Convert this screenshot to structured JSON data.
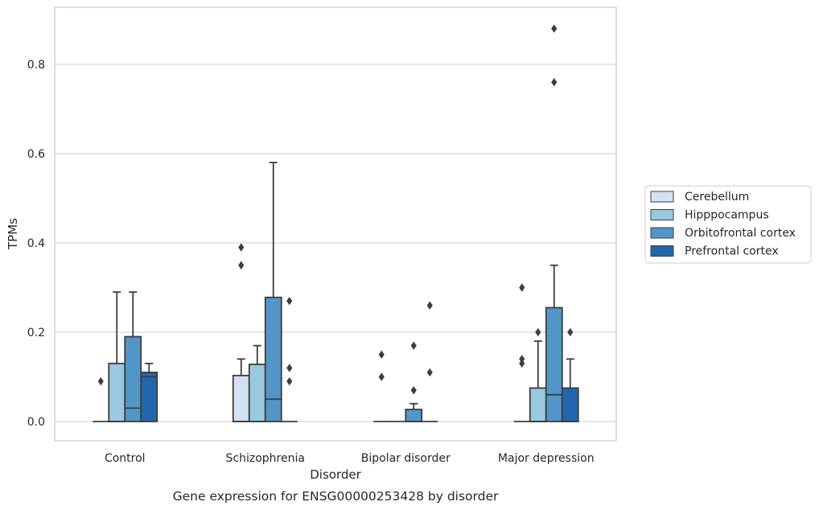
{
  "chart_data": {
    "type": "box",
    "xlabel": "Disorder",
    "ylabel": "TPMs",
    "caption": "Gene expression for ENSG00000253428 by disorder",
    "ylim": [
      -0.042,
      0.93
    ],
    "yticks": [
      "0.0",
      "0.2",
      "0.4",
      "0.6",
      "0.8"
    ],
    "ytick_values": [
      0.0,
      0.2,
      0.4,
      0.6,
      0.8
    ],
    "grid": "horizontal",
    "legend_position": "right",
    "categories": [
      "Control",
      "Schizophrenia",
      "Bipolar disorder",
      "Major depression"
    ],
    "series": [
      {
        "name": "Cerebellum",
        "color": "#d1e2f2",
        "boxes": [
          {
            "q1": 0.0,
            "median": 0.0,
            "q3": 0.0,
            "whislo": 0.0,
            "whishi": 0.0,
            "fliers": [
              0.09
            ]
          },
          {
            "q1": 0.0,
            "median": 0.0,
            "q3": 0.103,
            "whislo": 0.0,
            "whishi": 0.14,
            "fliers": [
              0.35,
              0.39
            ]
          },
          {
            "q1": 0.0,
            "median": 0.0,
            "q3": 0.0,
            "whislo": 0.0,
            "whishi": 0.0,
            "fliers": [
              0.1,
              0.15
            ]
          },
          {
            "q1": 0.0,
            "median": 0.0,
            "q3": 0.0,
            "whislo": 0.0,
            "whishi": 0.0,
            "fliers": [
              0.13,
              0.14,
              0.3
            ]
          }
        ]
      },
      {
        "name": "Hipppocampus",
        "color": "#9ac8e0",
        "boxes": [
          {
            "q1": 0.0,
            "median": 0.0,
            "q3": 0.13,
            "whislo": 0.0,
            "whishi": 0.29,
            "fliers": []
          },
          {
            "q1": 0.0,
            "median": 0.0,
            "q3": 0.128,
            "whislo": 0.0,
            "whishi": 0.17,
            "fliers": []
          },
          {
            "q1": 0.0,
            "median": 0.0,
            "q3": 0.0,
            "whislo": 0.0,
            "whishi": 0.0,
            "fliers": []
          },
          {
            "q1": 0.0,
            "median": 0.0,
            "q3": 0.075,
            "whislo": 0.0,
            "whishi": 0.18,
            "fliers": [
              0.2
            ]
          }
        ]
      },
      {
        "name": "Orbitofrontal cortex",
        "color": "#5296c8",
        "boxes": [
          {
            "q1": 0.0,
            "median": 0.03,
            "q3": 0.19,
            "whislo": 0.0,
            "whishi": 0.29,
            "fliers": []
          },
          {
            "q1": 0.0,
            "median": 0.05,
            "q3": 0.278,
            "whislo": 0.0,
            "whishi": 0.58,
            "fliers": []
          },
          {
            "q1": 0.0,
            "median": 0.0,
            "q3": 0.027,
            "whislo": 0.0,
            "whishi": 0.04,
            "fliers": [
              0.07,
              0.17
            ]
          },
          {
            "q1": 0.0,
            "median": 0.06,
            "q3": 0.255,
            "whislo": 0.0,
            "whishi": 0.35,
            "fliers": [
              0.76,
              0.88
            ]
          }
        ]
      },
      {
        "name": "Prefrontal cortex",
        "color": "#2266ac",
        "boxes": [
          {
            "q1": 0.0,
            "median": 0.1,
            "q3": 0.11,
            "whislo": 0.0,
            "whishi": 0.13,
            "fliers": []
          },
          {
            "q1": 0.0,
            "median": 0.0,
            "q3": 0.0,
            "whislo": 0.0,
            "whishi": 0.0,
            "fliers": [
              0.09,
              0.12,
              0.27
            ]
          },
          {
            "q1": 0.0,
            "median": 0.0,
            "q3": 0.0,
            "whislo": 0.0,
            "whishi": 0.0,
            "fliers": [
              0.11,
              0.26
            ]
          },
          {
            "q1": 0.0,
            "median": 0.0,
            "q3": 0.075,
            "whislo": 0.0,
            "whishi": 0.14,
            "fliers": [
              0.2
            ]
          }
        ]
      }
    ]
  }
}
